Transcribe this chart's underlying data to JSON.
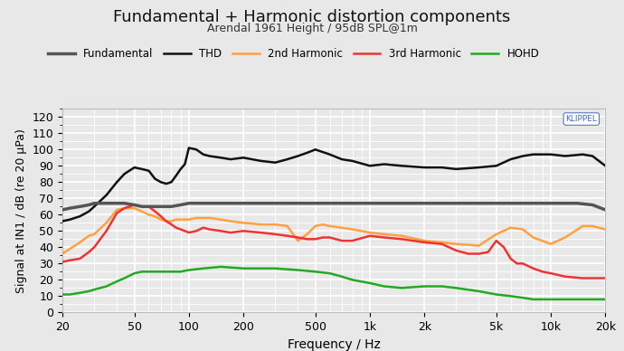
{
  "title": "Fundamental + Harmonic distortion components",
  "subtitle": "Arendal 1961 Height / 95dB SPL@1m",
  "xlabel": "Frequency / Hz",
  "ylabel": "Signal at IN1 / dB (re 20 µPa)",
  "xlim": [
    20,
    20000
  ],
  "ylim": [
    0,
    125
  ],
  "yticks": [
    0,
    10,
    20,
    30,
    40,
    50,
    60,
    70,
    80,
    90,
    100,
    110,
    120
  ],
  "xtick_labels": [
    "20",
    "50",
    "100",
    "200",
    "500",
    "1k",
    "2k",
    "5k",
    "10k",
    "20k"
  ],
  "xtick_values": [
    20,
    50,
    100,
    200,
    500,
    1000,
    2000,
    5000,
    10000,
    20000
  ],
  "bg_color": "#e8e8e8",
  "plot_bg_color": "#e8e8e8",
  "grid_color": "#ffffff",
  "legend": [
    {
      "label": "Fundamental",
      "color": "#555555",
      "lw": 2.5
    },
    {
      "label": "THD",
      "color": "#111111",
      "lw": 1.8
    },
    {
      "label": "2nd Harmonic",
      "color": "#FFA040",
      "lw": 1.8
    },
    {
      "label": "3rd Harmonic",
      "color": "#EE3333",
      "lw": 1.8
    },
    {
      "label": "HOHD",
      "color": "#22AA22",
      "lw": 1.8
    }
  ],
  "fundamental_freq": [
    20,
    22,
    25,
    28,
    30,
    33,
    36,
    40,
    44,
    50,
    55,
    60,
    65,
    70,
    80,
    90,
    100,
    110,
    120,
    140,
    160,
    180,
    200,
    250,
    300,
    400,
    500,
    600,
    700,
    800,
    1000,
    1200,
    1500,
    2000,
    3000,
    5000,
    7000,
    10000,
    14000,
    17000,
    20000
  ],
  "fundamental_db": [
    63,
    64,
    65,
    66,
    67,
    67,
    67,
    67,
    67,
    66,
    65,
    65,
    65,
    65,
    65,
    66,
    67,
    67,
    67,
    67,
    67,
    67,
    67,
    67,
    67,
    67,
    67,
    67,
    67,
    67,
    67,
    67,
    67,
    67,
    67,
    67,
    67,
    67,
    67,
    66,
    63
  ],
  "thd_freq": [
    20,
    22,
    25,
    28,
    30,
    35,
    40,
    44,
    50,
    55,
    60,
    65,
    70,
    75,
    80,
    85,
    90,
    95,
    100,
    110,
    120,
    130,
    150,
    170,
    200,
    250,
    300,
    350,
    400,
    450,
    500,
    600,
    700,
    800,
    1000,
    1200,
    1500,
    2000,
    2500,
    3000,
    4000,
    5000,
    6000,
    7000,
    8000,
    10000,
    12000,
    15000,
    17000,
    20000
  ],
  "thd_db": [
    56,
    57,
    59,
    62,
    65,
    72,
    80,
    85,
    89,
    88,
    87,
    82,
    80,
    79,
    80,
    84,
    88,
    91,
    101,
    100,
    97,
    96,
    95,
    94,
    95,
    93,
    92,
    94,
    96,
    98,
    100,
    97,
    94,
    93,
    90,
    91,
    90,
    89,
    89,
    88,
    89,
    90,
    94,
    96,
    97,
    97,
    96,
    97,
    96,
    90
  ],
  "h2_freq": [
    20,
    22,
    25,
    28,
    30,
    35,
    40,
    44,
    50,
    55,
    60,
    65,
    70,
    75,
    80,
    85,
    90,
    95,
    100,
    110,
    120,
    130,
    150,
    170,
    200,
    250,
    300,
    350,
    400,
    450,
    500,
    550,
    600,
    700,
    800,
    1000,
    1200,
    1500,
    2000,
    2500,
    3000,
    4000,
    5000,
    6000,
    7000,
    8000,
    10000,
    12000,
    15000,
    17000,
    20000
  ],
  "h2_db": [
    36,
    39,
    43,
    47,
    48,
    55,
    63,
    64,
    64,
    62,
    60,
    59,
    57,
    56,
    56,
    57,
    57,
    57,
    57,
    58,
    58,
    58,
    57,
    56,
    55,
    54,
    54,
    53,
    44,
    48,
    53,
    54,
    53,
    52,
    51,
    49,
    48,
    47,
    44,
    43,
    42,
    41,
    48,
    52,
    51,
    46,
    42,
    46,
    53,
    53,
    51
  ],
  "h3_freq": [
    20,
    22,
    25,
    28,
    30,
    35,
    40,
    44,
    50,
    55,
    60,
    65,
    70,
    75,
    80,
    85,
    90,
    95,
    100,
    110,
    120,
    130,
    150,
    170,
    200,
    250,
    300,
    350,
    400,
    450,
    500,
    550,
    600,
    700,
    800,
    1000,
    1200,
    1500,
    2000,
    2500,
    3000,
    3500,
    4000,
    4500,
    5000,
    5500,
    6000,
    6500,
    7000,
    8000,
    9000,
    10000,
    12000,
    15000,
    20000
  ],
  "h3_db": [
    31,
    32,
    33,
    37,
    40,
    50,
    61,
    64,
    66,
    65,
    65,
    62,
    59,
    56,
    54,
    52,
    51,
    50,
    49,
    50,
    52,
    51,
    50,
    49,
    50,
    49,
    48,
    47,
    46,
    45,
    45,
    46,
    46,
    44,
    44,
    47,
    46,
    45,
    43,
    42,
    38,
    36,
    36,
    37,
    44,
    40,
    33,
    30,
    30,
    27,
    25,
    24,
    22,
    21,
    21
  ],
  "hohd_freq": [
    20,
    22,
    25,
    28,
    30,
    35,
    40,
    44,
    50,
    55,
    60,
    65,
    70,
    80,
    90,
    100,
    120,
    150,
    200,
    250,
    300,
    400,
    500,
    600,
    700,
    800,
    1000,
    1200,
    1500,
    2000,
    2500,
    3000,
    4000,
    5000,
    6000,
    7000,
    8000,
    10000,
    15000,
    20000
  ],
  "hohd_db": [
    11,
    11,
    12,
    13,
    14,
    16,
    19,
    21,
    24,
    25,
    25,
    25,
    25,
    25,
    25,
    26,
    27,
    28,
    27,
    27,
    27,
    26,
    25,
    24,
    22,
    20,
    18,
    16,
    15,
    16,
    16,
    15,
    13,
    11,
    10,
    9,
    8,
    8,
    8,
    8
  ]
}
